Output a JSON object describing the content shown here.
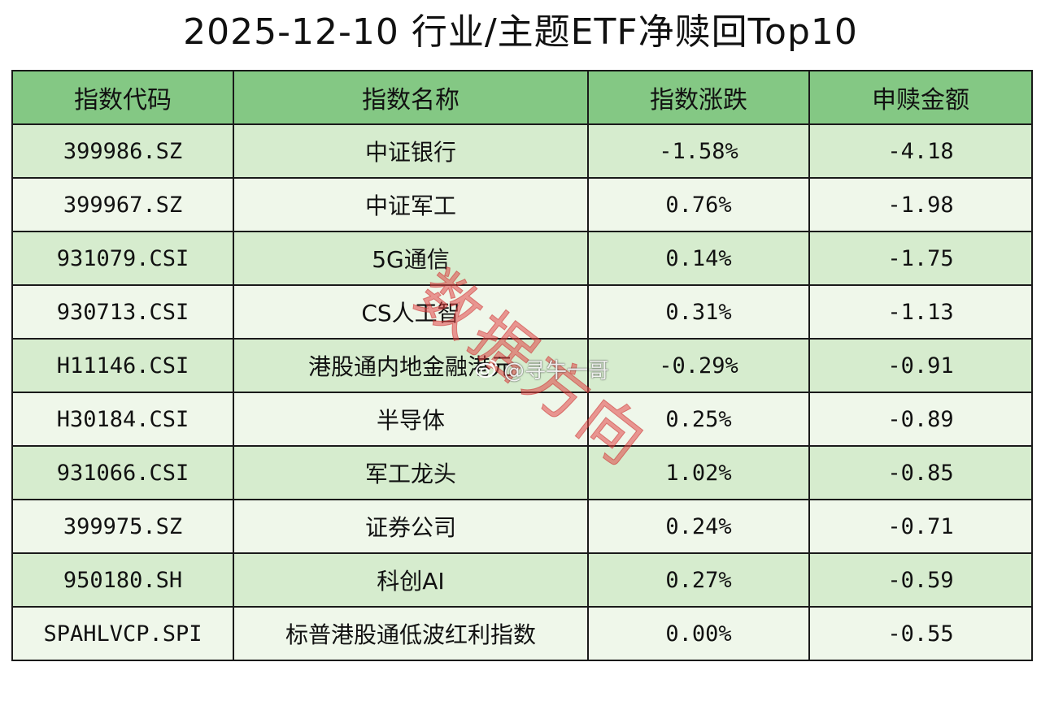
{
  "title": "2025-12-10 行业/主题ETF净赎回Top10",
  "watermark_stamp": "数据方向",
  "watermark_weibo": "@寻牛一哥",
  "colors": {
    "header_bg": "#84c884",
    "row_odd_bg": "#d6ecce",
    "row_even_bg": "#eff7ea",
    "stamp": "#e14646"
  },
  "chart_data": {
    "type": "table",
    "title": "2025-12-10 行业/主题ETF净赎回Top10",
    "columns": [
      "指数代码",
      "指数名称",
      "指数涨跌",
      "申赎金额"
    ],
    "rows": [
      [
        "399986.SZ",
        "中证银行",
        "-1.58%",
        "-4.18"
      ],
      [
        "399967.SZ",
        "中证军工",
        "0.76%",
        "-1.98"
      ],
      [
        "931079.CSI",
        "5G通信",
        "0.14%",
        "-1.75"
      ],
      [
        "930713.CSI",
        "CS人工智",
        "0.31%",
        "-1.13"
      ],
      [
        "H11146.CSI",
        "港股通内地金融港元",
        "-0.29%",
        "-0.91"
      ],
      [
        "H30184.CSI",
        "半导体",
        "0.25%",
        "-0.89"
      ],
      [
        "931066.CSI",
        "军工龙头",
        "1.02%",
        "-0.85"
      ],
      [
        "399975.SZ",
        "证券公司",
        "0.24%",
        "-0.71"
      ],
      [
        "950180.SH",
        "科创AI",
        "0.27%",
        "-0.59"
      ],
      [
        "SPAHLVCP.SPI",
        "标普港股通低波红利指数",
        "0.00%",
        "-0.55"
      ]
    ]
  }
}
